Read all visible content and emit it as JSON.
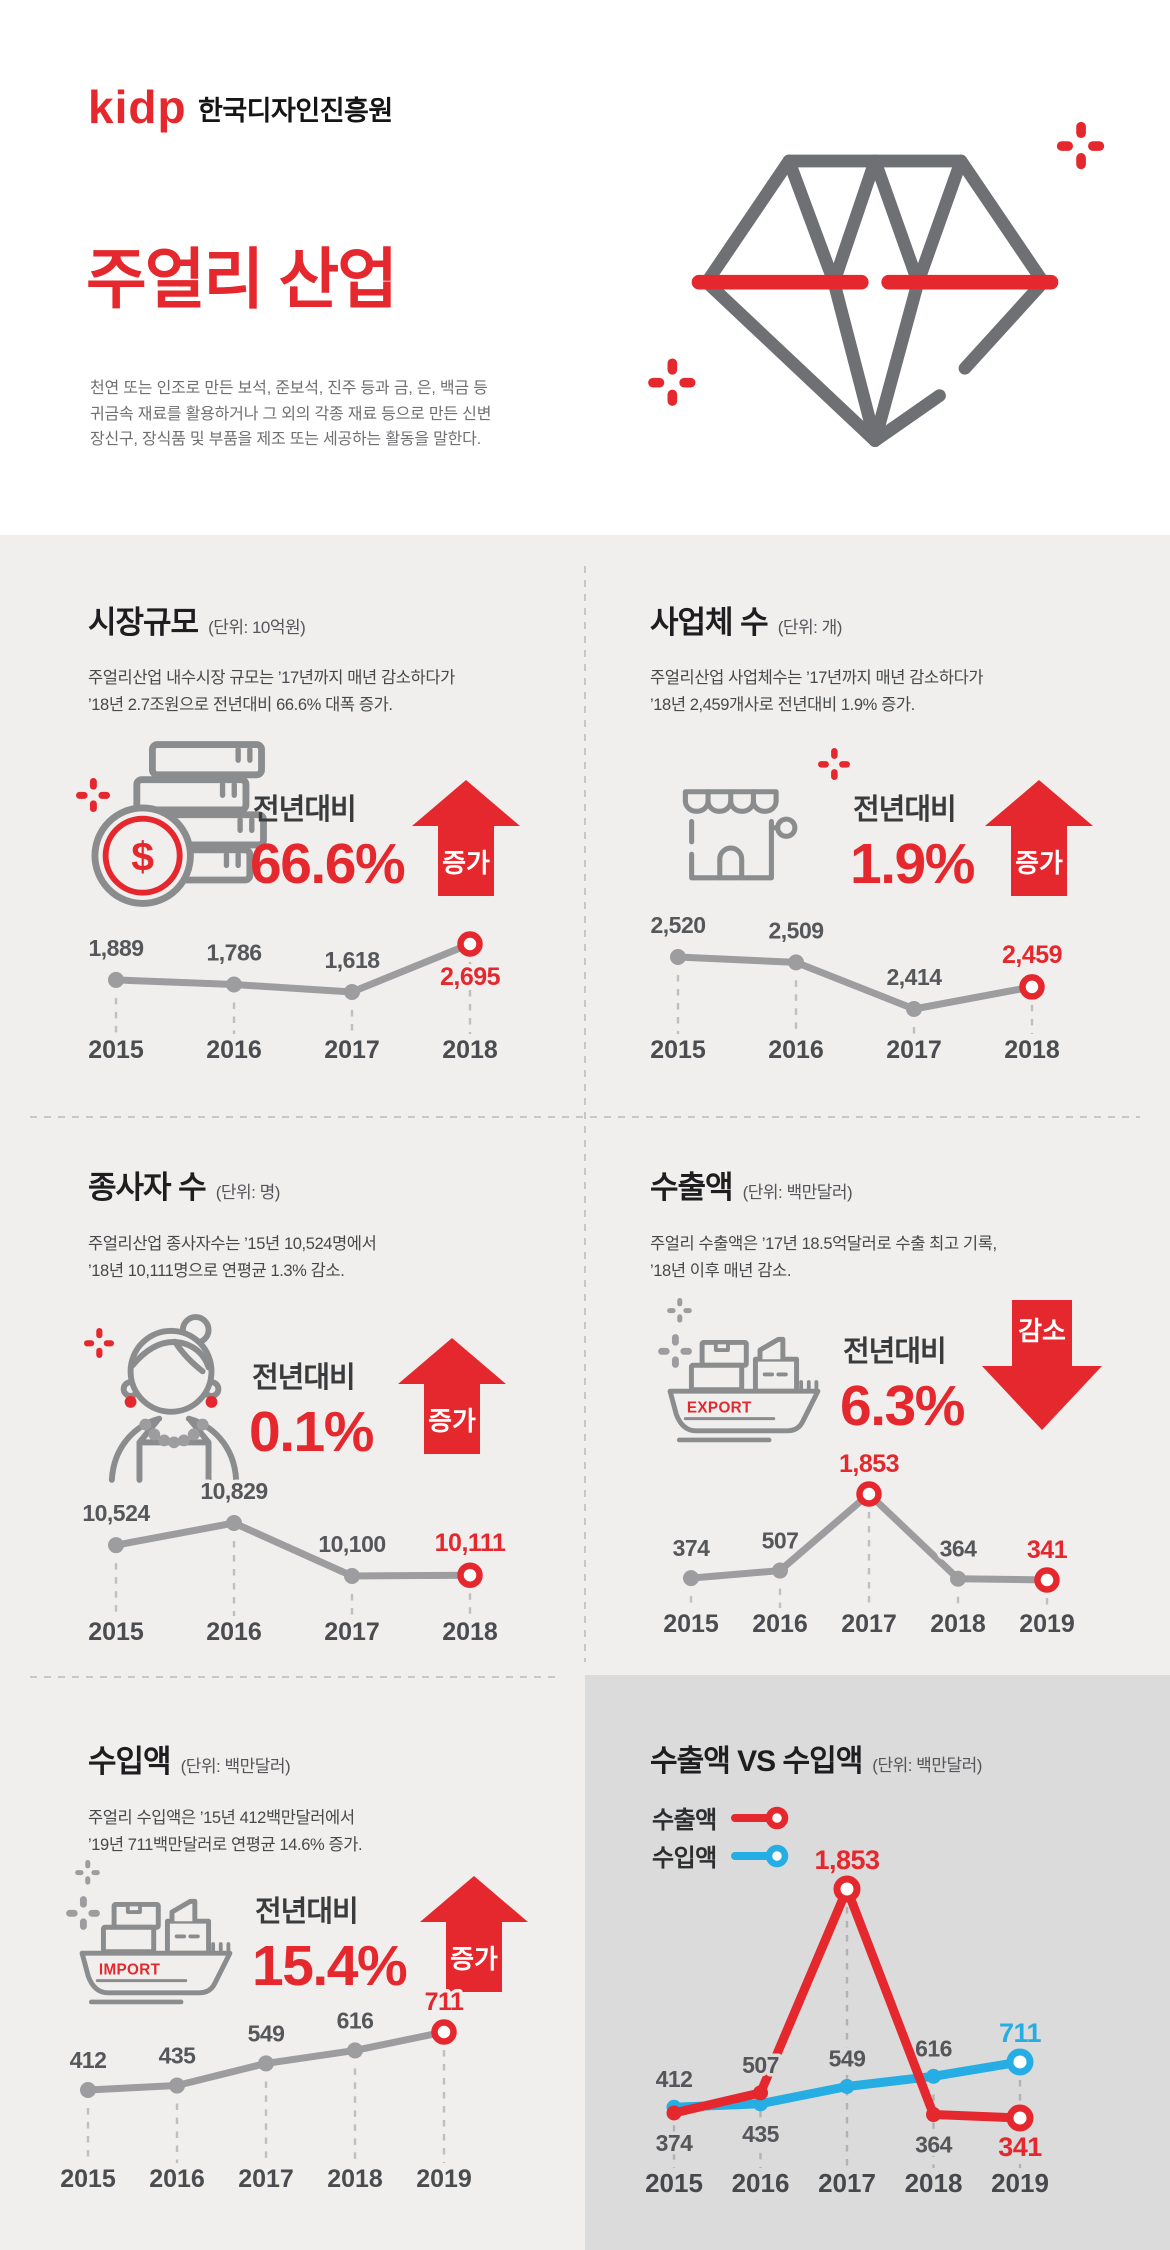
{
  "colors": {
    "red": "#e5282d",
    "blue": "#25ade4",
    "icon_gray": "#8a8c8e",
    "line_gray": "#9d9da0",
    "bg_light": "#f0efed",
    "bg_dark": "#dbdbdb"
  },
  "brand": {
    "logo_text": "kidp",
    "org_name": "한국디자인진흥원"
  },
  "header": {
    "title": "주얼리 산업",
    "description_lines": [
      "천연 또는 인조로 만든 보석, 준보석, 진주 등과 금, 은, 백금 등",
      "귀금속 재료를 활용하거나 그 외의 각종 재료 등으로 만든 신변",
      "장신구, 장식품 및 부품을 제조 또는 세공하는 활동을 말한다."
    ]
  },
  "panels": [
    {
      "title": "시장규모",
      "unit": "(단위: 10억원)",
      "desc": [
        "주얼리산업 내수시장 규모는 ’17년까지 매년 감소하다가",
        "’18년 2.7조원으로 전년대비 66.6% 대폭 증가."
      ],
      "stat": {
        "label": "전년대비",
        "value": "66.6%",
        "direction_label": "증가"
      },
      "icon_label": "$"
    },
    {
      "title": "사업체 수",
      "unit": "(단위: 개)",
      "desc": [
        "주얼리산업 사업체수는 ’17년까지 매년 감소하다가",
        "’18년 2,459개사로 전년대비 1.9% 증가."
      ],
      "stat": {
        "label": "전년대비",
        "value": "1.9%",
        "direction_label": "증가"
      }
    },
    {
      "title": "종사자 수",
      "unit": "(단위: 명)",
      "desc": [
        "주얼리산업 종사자수는 ’15년 10,524명에서",
        "’18년 10,111명으로 연평균 1.3% 감소."
      ],
      "stat": {
        "label": "전년대비",
        "value": "0.1%",
        "direction_label": "증가"
      }
    },
    {
      "title": "수출액",
      "unit": "(단위: 백만달러)",
      "desc": [
        "주얼리 수출액은 ’17년 18.5억달러로 수출 최고 기록,",
        "’18년 이후 매년 감소."
      ],
      "stat": {
        "label": "전년대비",
        "value": "6.3%",
        "direction_label": "감소"
      },
      "icon_label": "EXPORT"
    },
    {
      "title": "수입액",
      "unit": "(단위: 백만달러)",
      "desc": [
        "주얼리 수입액은 ’15년 412백만달러에서",
        "’19년 711백만달러로 연평균 14.6% 증가."
      ],
      "stat": {
        "label": "전년대비",
        "value": "15.4%",
        "direction_label": "증가"
      },
      "icon_label": "IMPORT"
    },
    {
      "title": "수출액 VS 수입액",
      "unit": "(단위: 백만달러)",
      "legend": [
        {
          "label": "수출액"
        },
        {
          "label": "수입액"
        }
      ]
    }
  ],
  "chart_data": [
    {
      "type": "line",
      "title": "시장규모",
      "ylabel": "10억원",
      "categories": [
        "2015",
        "2016",
        "2017",
        "2018"
      ],
      "series": [
        {
          "name": "시장규모",
          "values": [
            1889,
            1786,
            1618,
            2695
          ],
          "labels": [
            "1,889",
            "1,786",
            "1,618",
            "2,695"
          ],
          "ring": [
            3
          ],
          "highlight": [
            3
          ]
        }
      ]
    },
    {
      "type": "line",
      "title": "사업체 수",
      "ylabel": "개",
      "categories": [
        "2015",
        "2016",
        "2017",
        "2018"
      ],
      "series": [
        {
          "name": "사업체 수",
          "values": [
            2520,
            2509,
            2414,
            2459
          ],
          "labels": [
            "2,520",
            "2,509",
            "2,414",
            "2,459"
          ],
          "ring": [
            3
          ],
          "highlight": [
            3
          ]
        }
      ]
    },
    {
      "type": "line",
      "title": "종사자 수",
      "ylabel": "명",
      "categories": [
        "2015",
        "2016",
        "2017",
        "2018"
      ],
      "series": [
        {
          "name": "종사자 수",
          "values": [
            10524,
            10829,
            10100,
            10111
          ],
          "labels": [
            "10,524",
            "10,829",
            "10,100",
            "10,111"
          ],
          "ring": [
            3
          ],
          "highlight": [
            3
          ]
        }
      ]
    },
    {
      "type": "line",
      "title": "수출액",
      "ylabel": "백만달러",
      "categories": [
        "2015",
        "2016",
        "2017",
        "2018",
        "2019"
      ],
      "series": [
        {
          "name": "수출액",
          "values": [
            374,
            507,
            1853,
            364,
            341
          ],
          "labels": [
            "374",
            "507",
            "1,853",
            "364",
            "341"
          ],
          "ring": [
            2,
            4
          ],
          "highlight": [
            2,
            4
          ]
        }
      ]
    },
    {
      "type": "line",
      "title": "수입액",
      "ylabel": "백만달러",
      "categories": [
        "2015",
        "2016",
        "2017",
        "2018",
        "2019"
      ],
      "series": [
        {
          "name": "수입액",
          "values": [
            412,
            435,
            549,
            616,
            711
          ],
          "labels": [
            "412",
            "435",
            "549",
            "616",
            "711"
          ],
          "ring": [
            4
          ],
          "highlight": [
            4
          ]
        }
      ]
    },
    {
      "type": "line",
      "title": "수출액 VS 수입액",
      "ylabel": "백만달러",
      "categories": [
        "2015",
        "2016",
        "2017",
        "2018",
        "2019"
      ],
      "series": [
        {
          "name": "수입액",
          "values": [
            412,
            435,
            549,
            616,
            711
          ],
          "labels": [
            "412",
            "435",
            "549",
            "616",
            "711"
          ],
          "ring": [
            4
          ],
          "highlight": [
            4
          ]
        },
        {
          "name": "수출액",
          "values": [
            374,
            507,
            1853,
            364,
            341
          ],
          "labels": [
            "374",
            "507",
            "1,853",
            "364",
            "341"
          ],
          "ring": [
            2,
            4
          ],
          "highlight": [
            2,
            4
          ]
        }
      ]
    }
  ]
}
